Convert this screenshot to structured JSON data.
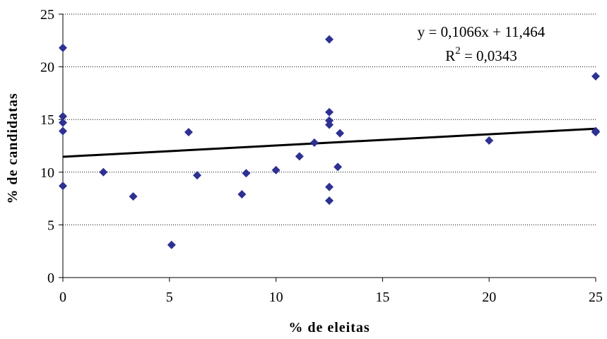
{
  "chart_data": {
    "type": "scatter",
    "title": "",
    "xlabel": "% de eleitas",
    "ylabel": "% de candidatas",
    "xlim": [
      0,
      25
    ],
    "ylim": [
      0,
      25
    ],
    "xticks": [
      0,
      5,
      10,
      15,
      20,
      25
    ],
    "yticks": [
      0,
      5,
      10,
      15,
      20,
      25
    ],
    "grid": "horizontal dotted",
    "marker": "diamond",
    "marker_color": "#2E3192",
    "trendline": {
      "type": "linear",
      "slope": 0.1066,
      "intercept": 11.464,
      "equation": "y = 0,1066x + 11,464",
      "r2_prefix": "R",
      "r2_sup": "2",
      "r2_value": " = 0,0343",
      "color": "#000000"
    },
    "points": [
      {
        "x": 0,
        "y": 21.8
      },
      {
        "x": 0,
        "y": 15.3
      },
      {
        "x": 0,
        "y": 14.7
      },
      {
        "x": 0,
        "y": 13.9
      },
      {
        "x": 0,
        "y": 8.7
      },
      {
        "x": 1.9,
        "y": 10.0
      },
      {
        "x": 3.3,
        "y": 7.7
      },
      {
        "x": 5.1,
        "y": 3.1
      },
      {
        "x": 5.9,
        "y": 13.8
      },
      {
        "x": 6.3,
        "y": 9.7
      },
      {
        "x": 8.4,
        "y": 7.9
      },
      {
        "x": 8.6,
        "y": 9.9
      },
      {
        "x": 10.0,
        "y": 10.2
      },
      {
        "x": 11.1,
        "y": 11.5
      },
      {
        "x": 11.8,
        "y": 12.8
      },
      {
        "x": 12.5,
        "y": 22.6
      },
      {
        "x": 12.5,
        "y": 15.7
      },
      {
        "x": 12.5,
        "y": 14.9
      },
      {
        "x": 12.5,
        "y": 14.5
      },
      {
        "x": 12.5,
        "y": 8.6
      },
      {
        "x": 12.5,
        "y": 7.3
      },
      {
        "x": 12.9,
        "y": 10.5
      },
      {
        "x": 13.0,
        "y": 13.7
      },
      {
        "x": 20.0,
        "y": 13.0
      },
      {
        "x": 25.0,
        "y": 19.1
      },
      {
        "x": 25.0,
        "y": 13.9
      },
      {
        "x": 25.0,
        "y": 13.8
      }
    ]
  }
}
